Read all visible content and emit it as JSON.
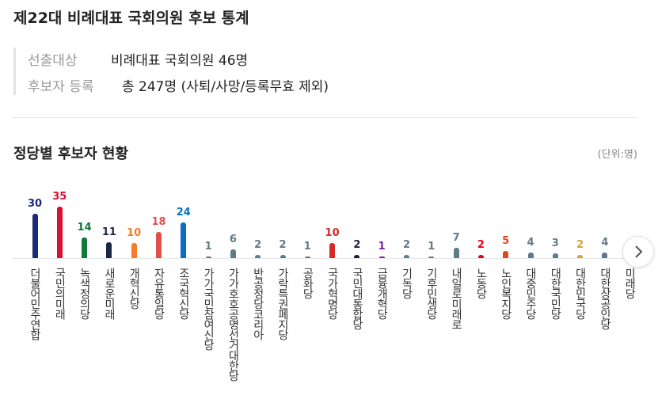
{
  "header": {
    "title": "제22대 비례대표 국회의원 후보 통계",
    "rows": [
      [
        "선출대상",
        "비례대표 국회의원 46명"
      ],
      [
        "후보자 등록",
        "총 247명 (사퇴/사망/등록무효 제외)"
      ]
    ]
  },
  "chart_data": {
    "type": "bar",
    "title": "정당별 후보자 현황",
    "unit_label": "(단위:명)",
    "categories": [
      "더불어민주연합",
      "국민의미래",
      "녹색정의당",
      "새로운미래",
      "개혁신당",
      "자유통일당",
      "조국혁신당",
      "가가국민참여신당",
      "가가호호공명선거대한당",
      "반공정당코리아",
      "가락특권폐지당",
      "공화당",
      "국가혁명당",
      "국민대통합당",
      "금융개혁당",
      "기독당",
      "기후민생당",
      "내일로미래로",
      "노동당",
      "노인복지당",
      "대중민주당",
      "대한국민당",
      "대한민국당",
      "대한상공인당",
      "미래당"
    ],
    "values": [
      30,
      35,
      14,
      11,
      10,
      18,
      24,
      1,
      6,
      2,
      2,
      1,
      10,
      2,
      1,
      2,
      1,
      7,
      2,
      5,
      4,
      3,
      2,
      4,
      null
    ],
    "colors": [
      "#1b2a7c",
      "#d7112f",
      "#0b7a3b",
      "#1d2846",
      "#f47c2a",
      "#e25149",
      "#0a6fc4",
      "#5f7b88",
      "#5f7b88",
      "#5f7b88",
      "#5f7b88",
      "#5f7b88",
      "#d42b27",
      "#1a1f3c",
      "#7a1ea6",
      "#5f7b88",
      "#5f7b88",
      "#5f7b88",
      "#e2001a",
      "#e2491a",
      "#5f7b88",
      "#5f7b88",
      "#d4a236",
      "#5f7b88",
      "#5f7b88"
    ]
  }
}
